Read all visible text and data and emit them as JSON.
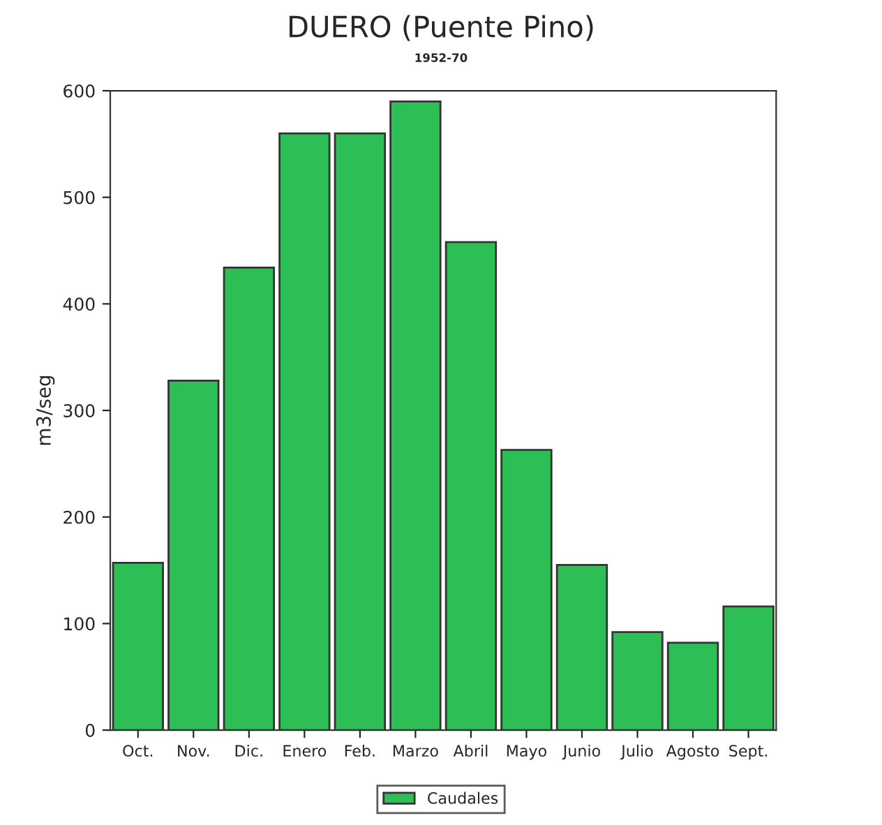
{
  "chart_data": {
    "type": "bar",
    "title": "DUERO (Puente Pino)",
    "subtitle": "1952-70",
    "ylabel": "m3/seg",
    "categories": [
      "Oct.",
      "Nov.",
      "Dic.",
      "Enero",
      "Feb.",
      "Marzo",
      "Abril",
      "Mayo",
      "Junio",
      "Julio",
      "Agosto",
      "Sept."
    ],
    "series": [
      {
        "name": "Caudales",
        "color": "#2dbf55",
        "values": [
          157,
          328,
          434,
          560,
          560,
          590,
          458,
          263,
          155,
          92,
          82,
          116
        ]
      }
    ],
    "ylim": [
      0,
      600
    ],
    "yticks": [
      0,
      100,
      200,
      300,
      400,
      500,
      600
    ],
    "grid": false,
    "legend": "bottom"
  }
}
